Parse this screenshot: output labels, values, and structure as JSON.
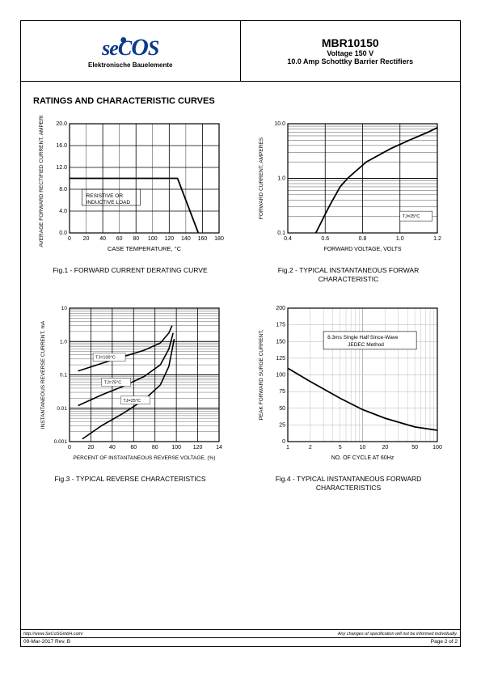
{
  "header": {
    "logo_text": "secos",
    "logo_subtitle": "Elektronische Bauelemente",
    "part_number": "MBR10150",
    "voltage": "Voltage 150 V",
    "description": "10.0 Amp Schottky Barrier Rectifiers"
  },
  "section_title": "RATINGS AND CHARACTERISTIC CURVES",
  "fig1": {
    "caption": "Fig.1 - FORWARD CURRENT DERATING CURVE",
    "xlabel": "CASE TEMPERATURE, °C",
    "ylabel": "AVERAGE FORWARD RECTIFIED CURRENT, AMPERES",
    "note": "RESISTIVE OR INDUCTIVE LOAD",
    "xticks": [
      "0",
      "20",
      "40",
      "60",
      "80",
      "100",
      "120",
      "140",
      "160",
      "180"
    ],
    "yticks": [
      "0.0",
      "4.0",
      "8.0",
      "12.0",
      "16.0",
      "20.0"
    ],
    "xlim": [
      0,
      180
    ],
    "ylim": [
      0,
      20
    ],
    "line": [
      [
        0,
        10
      ],
      [
        130,
        10
      ],
      [
        155,
        0
      ]
    ],
    "colors": {
      "line": "#000000",
      "grid": "#000000",
      "bg": "#ffffff"
    }
  },
  "fig2": {
    "caption": "Fig.2 - TYPICAL INSTANTANEOUS FORWAR CHARACTERISTIC",
    "xlabel": "FORWARD VOLTAGE, VOLTS",
    "ylabel": "FORWARD CURRENT, AMPERES",
    "xticks": [
      "0.4",
      "0.6",
      "0.8",
      "1.0",
      "1.2"
    ],
    "yticks": [
      "0.1",
      "1.0",
      "10.0"
    ],
    "note": "TJ=25°C",
    "line": [
      [
        0.55,
        0.1
      ],
      [
        0.62,
        0.3
      ],
      [
        0.68,
        0.7
      ],
      [
        0.72,
        1.0
      ],
      [
        0.82,
        2.0
      ],
      [
        0.95,
        3.5
      ],
      [
        1.05,
        5.0
      ],
      [
        1.15,
        7.0
      ],
      [
        1.2,
        8.5
      ]
    ],
    "colors": {
      "line": "#000000",
      "grid": "#000000"
    }
  },
  "fig3": {
    "caption": "Fig.3 - TYPICAL REVERSE CHARACTERISTICS",
    "xlabel": "PERCENT OF INSTANTANEOUS REVERSE VOLTAGE, (%)",
    "ylabel": "INSTANTANEOUS REVERSE CURRENT, mA",
    "xticks": [
      "0",
      "20",
      "40",
      "60",
      "80",
      "100",
      "120",
      "14"
    ],
    "yticks": [
      "0.001",
      "0.01",
      "0.1",
      "1.0",
      "10"
    ],
    "labels": [
      "TJ=100°C",
      "TJ=75°C",
      "TJ=25°C"
    ],
    "lines": {
      "t100": [
        [
          8,
          0.13
        ],
        [
          30,
          0.22
        ],
        [
          50,
          0.35
        ],
        [
          70,
          0.55
        ],
        [
          85,
          0.9
        ],
        [
          93,
          1.8
        ],
        [
          96,
          3.0
        ]
      ],
      "t75": [
        [
          8,
          0.012
        ],
        [
          30,
          0.025
        ],
        [
          50,
          0.045
        ],
        [
          70,
          0.09
        ],
        [
          85,
          0.2
        ],
        [
          93,
          0.6
        ],
        [
          97,
          1.8
        ]
      ],
      "t25": [
        [
          12,
          0.0012
        ],
        [
          30,
          0.003
        ],
        [
          50,
          0.007
        ],
        [
          70,
          0.018
        ],
        [
          85,
          0.05
        ],
        [
          93,
          0.18
        ],
        [
          98,
          1.2
        ]
      ]
    },
    "colors": {
      "line": "#000000",
      "grid": "#000000"
    }
  },
  "fig4": {
    "caption": "Fig.4 - TYPICAL INSTANTANEOUS FORWARD CHARACTERISTICS",
    "xlabel": "NO. OF CYCLE AT 60Hz",
    "ylabel": "PEAK FORWARD SURGE CURRENT,",
    "xticks": [
      "1",
      "2",
      "5",
      "10",
      "20",
      "50",
      "100"
    ],
    "yticks": [
      "0",
      "25",
      "50",
      "75",
      "100",
      "125",
      "150",
      "175",
      "200"
    ],
    "note": "8.3ms Single Half Since-Wave JEDEC Method",
    "line": [
      [
        1,
        110
      ],
      [
        2,
        90
      ],
      [
        5,
        65
      ],
      [
        10,
        48
      ],
      [
        20,
        35
      ],
      [
        50,
        22
      ],
      [
        100,
        17
      ]
    ],
    "colors": {
      "line": "#000000",
      "grid": "#b0b0b0"
    }
  },
  "footer": {
    "url": "http://www.SeCoSGmbH.com/",
    "disclaimer": "Any changes of specification will not be informed individually.",
    "rev": "09-Mar-2017 Rev. B",
    "page": "Page  2  of  2"
  }
}
